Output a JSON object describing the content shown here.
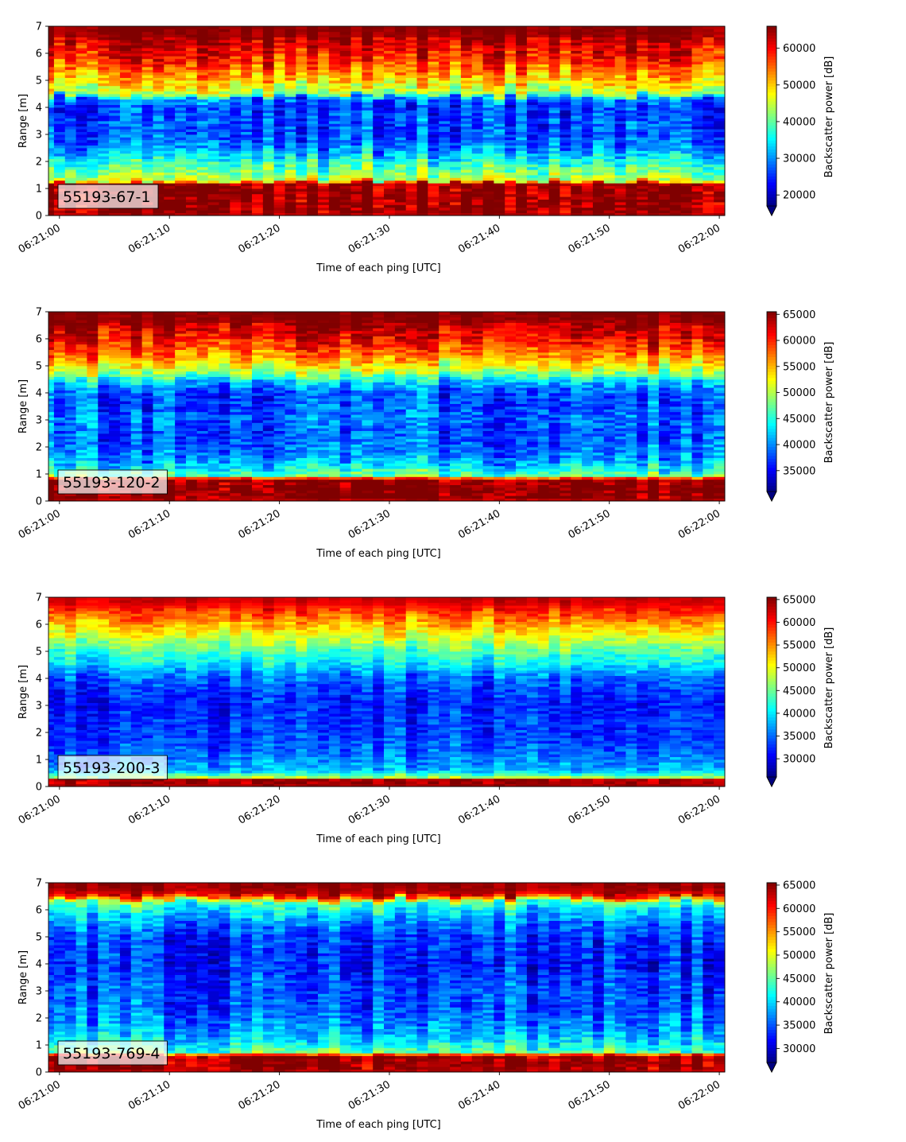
{
  "chart_data": [
    {
      "type": "heatmap",
      "label": "55193-67-1",
      "xlabel": "Time of each ping [UTC]",
      "ylabel": "Range [m]",
      "xticks": [
        "06:21:00",
        "06:21:10",
        "06:21:20",
        "06:21:30",
        "06:21:40",
        "06:21:50",
        "06:22:00"
      ],
      "xlim_seconds": [
        -1,
        60.5
      ],
      "yticks": [
        0,
        1,
        2,
        3,
        4,
        5,
        6,
        7
      ],
      "ylim": [
        0,
        7
      ],
      "colorbar": {
        "label": "Backscatter power [dB]",
        "min": 17000,
        "max": 66000,
        "ticks": [
          20000,
          30000,
          40000,
          50000,
          60000
        ],
        "extend": "min",
        "colormap": "jet"
      },
      "profile": [
        [
          0.0,
          63000
        ],
        [
          0.15,
          65500
        ],
        [
          1.15,
          65500
        ],
        [
          1.3,
          45000
        ],
        [
          1.8,
          40000
        ],
        [
          2.2,
          34000
        ],
        [
          2.6,
          29000
        ],
        [
          3.0,
          27000
        ],
        [
          3.5,
          27000
        ],
        [
          4.0,
          26000
        ],
        [
          4.35,
          30000
        ],
        [
          4.5,
          44000
        ],
        [
          4.9,
          49000
        ],
        [
          5.3,
          54000
        ],
        [
          5.8,
          59000
        ],
        [
          6.3,
          62000
        ],
        [
          6.6,
          65000
        ],
        [
          7.0,
          66000
        ]
      ],
      "ping_jitter": 4500,
      "cell_noise": 4000,
      "ping_seconds": 1,
      "range_step_m": 0.1
    },
    {
      "type": "heatmap",
      "label": "55193-120-2",
      "xlabel": "Time of each ping [UTC]",
      "ylabel": "Range [m]",
      "xticks": [
        "06:21:00",
        "06:21:10",
        "06:21:20",
        "06:21:30",
        "06:21:40",
        "06:21:50",
        "06:22:00"
      ],
      "xlim_seconds": [
        -1,
        60.5
      ],
      "yticks": [
        0,
        1,
        2,
        3,
        4,
        5,
        6,
        7
      ],
      "ylim": [
        0,
        7
      ],
      "colorbar": {
        "label": "Backscatter power [dB]",
        "min": 31000,
        "max": 65500,
        "ticks": [
          35000,
          40000,
          45000,
          50000,
          55000,
          60000,
          65000
        ],
        "extend": "min",
        "colormap": "jet"
      },
      "profile": [
        [
          0.0,
          63000
        ],
        [
          0.15,
          65500
        ],
        [
          0.8,
          65500
        ],
        [
          0.95,
          47000
        ],
        [
          1.5,
          41000
        ],
        [
          2.0,
          39000
        ],
        [
          2.5,
          38000
        ],
        [
          3.0,
          39000
        ],
        [
          3.5,
          38000
        ],
        [
          4.0,
          38000
        ],
        [
          4.4,
          42000
        ],
        [
          4.8,
          50000
        ],
        [
          5.3,
          56000
        ],
        [
          5.8,
          60000
        ],
        [
          6.3,
          63000
        ],
        [
          6.7,
          65000
        ],
        [
          7.0,
          65500
        ]
      ],
      "ping_jitter": 3000,
      "cell_noise": 2800,
      "ping_seconds": 1,
      "range_step_m": 0.1
    },
    {
      "type": "heatmap",
      "label": "55193-200-3",
      "xlabel": "Time of each ping [UTC]",
      "ylabel": "Range [m]",
      "xticks": [
        "06:21:00",
        "06:21:10",
        "06:21:20",
        "06:21:30",
        "06:21:40",
        "06:21:50",
        "06:22:00"
      ],
      "xlim_seconds": [
        -1,
        60.5
      ],
      "yticks": [
        0,
        1,
        2,
        3,
        4,
        5,
        6,
        7
      ],
      "ylim": [
        0,
        7
      ],
      "colorbar": {
        "label": "Backscatter power [dB]",
        "min": 26000,
        "max": 65500,
        "ticks": [
          30000,
          35000,
          40000,
          45000,
          50000,
          55000,
          60000,
          65000
        ],
        "extend": "min",
        "colormap": "jet"
      },
      "profile": [
        [
          0.0,
          64000
        ],
        [
          0.25,
          64000
        ],
        [
          0.35,
          47000
        ],
        [
          0.6,
          38000
        ],
        [
          1.0,
          36000
        ],
        [
          1.5,
          34000
        ],
        [
          2.0,
          33000
        ],
        [
          2.5,
          33000
        ],
        [
          3.0,
          32000
        ],
        [
          3.5,
          33000
        ],
        [
          4.0,
          35000
        ],
        [
          4.5,
          40000
        ],
        [
          5.0,
          44000
        ],
        [
          5.5,
          49000
        ],
        [
          6.0,
          54000
        ],
        [
          6.4,
          58000
        ],
        [
          6.8,
          62000
        ],
        [
          7.0,
          63000
        ]
      ],
      "ping_jitter": 2500,
      "cell_noise": 2500,
      "ping_seconds": 1,
      "range_step_m": 0.1
    },
    {
      "type": "heatmap",
      "label": "55193-769-4",
      "xlabel": "Time of each ping [UTC]",
      "ylabel": "Range [m]",
      "xticks": [
        "06:21:00",
        "06:21:10",
        "06:21:20",
        "06:21:30",
        "06:21:40",
        "06:21:50",
        "06:22:00"
      ],
      "xlim_seconds": [
        -1,
        60.5
      ],
      "yticks": [
        0,
        1,
        2,
        3,
        4,
        5,
        6,
        7
      ],
      "ylim": [
        0,
        7
      ],
      "colorbar": {
        "label": "Backscatter power [dB]",
        "min": 27000,
        "max": 65500,
        "ticks": [
          30000,
          35000,
          40000,
          45000,
          50000,
          55000,
          60000,
          65000
        ],
        "extend": "min",
        "colormap": "jet"
      },
      "profile": [
        [
          0.0,
          63000
        ],
        [
          0.2,
          65000
        ],
        [
          0.6,
          65000
        ],
        [
          0.75,
          45000
        ],
        [
          1.2,
          40000
        ],
        [
          1.8,
          37000
        ],
        [
          2.5,
          35000
        ],
        [
          3.0,
          35000
        ],
        [
          3.5,
          34000
        ],
        [
          4.0,
          33000
        ],
        [
          5.0,
          34000
        ],
        [
          5.5,
          37000
        ],
        [
          6.0,
          41000
        ],
        [
          6.3,
          45000
        ],
        [
          6.5,
          60000
        ],
        [
          6.7,
          64000
        ],
        [
          7.0,
          65000
        ]
      ],
      "ping_jitter": 3500,
      "cell_noise": 2800,
      "ping_seconds": 1,
      "range_step_m": 0.1
    }
  ]
}
